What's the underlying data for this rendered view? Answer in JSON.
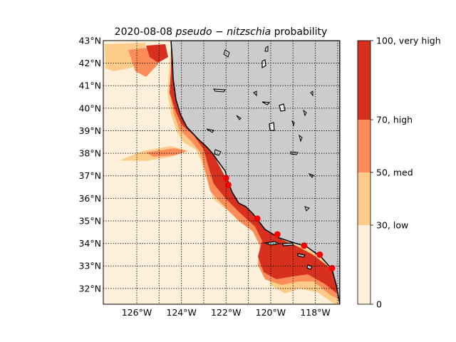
{
  "title": {
    "date": "2020-08-08",
    "species": "pseudo − nitzschia",
    "suffix": "probability"
  },
  "map": {
    "projection": "lat-lon",
    "lon_range": [
      -127.5,
      -116.9
    ],
    "lat_range": [
      31.3,
      43.0
    ],
    "gridlines": "dotted",
    "land_color": "#cccccc",
    "lat_ticks": [
      "32°N",
      "33°N",
      "34°N",
      "35°N",
      "36°N",
      "37°N",
      "38°N",
      "39°N",
      "40°N",
      "41°N",
      "42°N",
      "43°N"
    ],
    "lon_ticks": [
      "126°W",
      "124°W",
      "122°W",
      "120°W",
      "118°W"
    ]
  },
  "colorbar": {
    "levels": [
      {
        "label": "0",
        "color": "#fff0dc"
      },
      {
        "label": "30, low",
        "color": "#fdcc8a"
      },
      {
        "label": "50, med",
        "color": "#fc8d59"
      },
      {
        "label": "70, high",
        "color": "#d7301f"
      },
      {
        "label": "100, very high",
        "color": ""
      }
    ]
  },
  "stations": [
    {
      "lat": 36.9,
      "lon": -122.0
    },
    {
      "lat": 36.6,
      "lon": -121.9
    },
    {
      "lat": 35.1,
      "lon": -120.6
    },
    {
      "lat": 34.4,
      "lon": -119.7
    },
    {
      "lat": 33.9,
      "lon": -118.5
    },
    {
      "lat": 33.5,
      "lon": -117.8
    },
    {
      "lat": 32.9,
      "lon": -117.25
    }
  ]
}
